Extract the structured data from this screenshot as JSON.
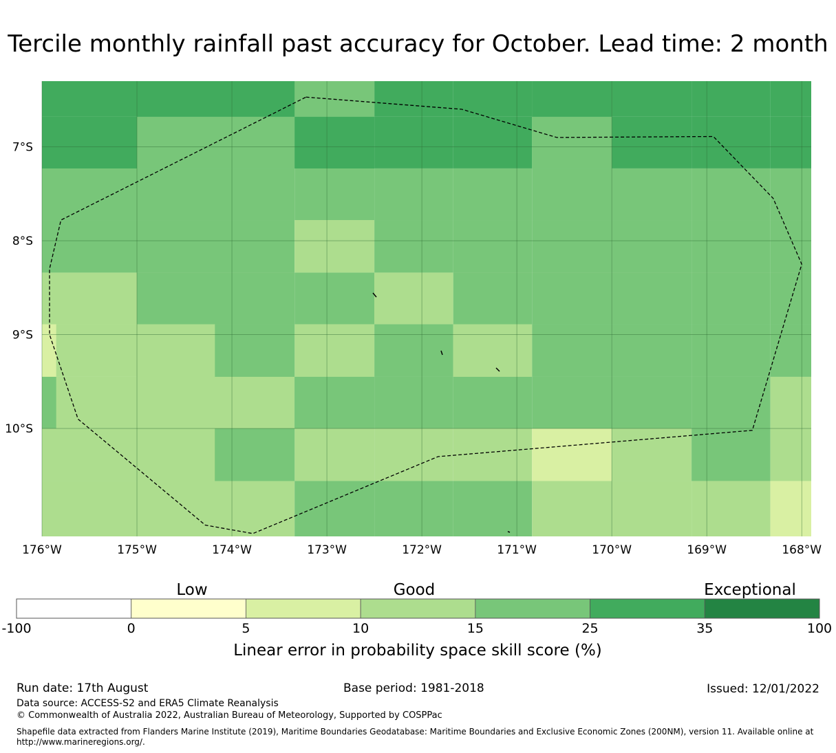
{
  "title": "Tercile monthly rainfall past accuracy for October. Lead time: 2 month",
  "map": {
    "lon_range": [
      -176,
      -167.9
    ],
    "lat_range": [
      -11.15,
      -6.3
    ],
    "lon_ticks": [
      {
        "value": -176,
        "label": "176°W"
      },
      {
        "value": -175,
        "label": "175°W"
      },
      {
        "value": -174,
        "label": "174°W"
      },
      {
        "value": -173,
        "label": "173°W"
      },
      {
        "value": -172,
        "label": "172°W"
      },
      {
        "value": -171,
        "label": "171°W"
      },
      {
        "value": -170,
        "label": "170°W"
      },
      {
        "value": -169,
        "label": "169°W"
      },
      {
        "value": -168,
        "label": "168°W"
      }
    ],
    "lat_ticks": [
      {
        "value": -7,
        "label": "7°S"
      },
      {
        "value": -8,
        "label": "8°S"
      },
      {
        "value": -9,
        "label": "9°S"
      },
      {
        "value": -10,
        "label": "10°S"
      }
    ],
    "grid": true,
    "cell_lon_edges": [
      -176,
      -175,
      -173.34,
      -172.5,
      -171.67,
      -170.84,
      -170,
      -169.16,
      -168.33,
      -167.9
    ],
    "cell_lat_edges": [
      -6.3,
      -6.68,
      -7.23,
      -7.78,
      -8.34,
      -8.89,
      -9.45,
      -10.0,
      -10.56,
      -11.15
    ],
    "skill_category_grid": [
      [
        5,
        5,
        4,
        5,
        5,
        5,
        5,
        5,
        5
      ],
      [
        5,
        4,
        5,
        5,
        5,
        4,
        5,
        5,
        5
      ],
      [
        4,
        4,
        4,
        4,
        4,
        4,
        4,
        4,
        4
      ],
      [
        4,
        4,
        3,
        4,
        4,
        4,
        4,
        4,
        4
      ],
      [
        3,
        4,
        4,
        3,
        4,
        4,
        4,
        4,
        4
      ],
      [
        3,
        3,
        3,
        4,
        3,
        4,
        4,
        4,
        4
      ],
      [
        3,
        3,
        4,
        4,
        4,
        4,
        4,
        4,
        3
      ],
      [
        3,
        4,
        3,
        3,
        3,
        2,
        3,
        4,
        3
      ],
      [
        3,
        3,
        4,
        4,
        4,
        3,
        3,
        3,
        2
      ]
    ],
    "skill_overrides": [
      {
        "lon": [
          -176,
          -175
        ],
        "lat": [
          -8.89,
          -9.45
        ],
        "cat_west": 2,
        "split_lon": -175.85
      },
      {
        "lon": [
          -176,
          -175
        ],
        "lat": [
          -9.45,
          -10.0
        ],
        "cat_west": 4,
        "split_lon": -175.85
      },
      {
        "lon": [
          -174.18,
          -173.34
        ],
        "lat": [
          -8.89,
          -9.45
        ],
        "cat": 4
      },
      {
        "lon": [
          -174.18,
          -173.34
        ],
        "lat": [
          -10.0,
          -10.56
        ],
        "cat": 4
      },
      {
        "lon": [
          -175,
          -174.18
        ],
        "lat": [
          -8.89,
          -9.45
        ],
        "cat": 3
      },
      {
        "lon": [
          -175,
          -174.18
        ],
        "lat": [
          -10.0,
          -10.56
        ],
        "cat": 3
      },
      {
        "lon": [
          -173.34,
          -172.5
        ],
        "lat": [
          -9.45,
          -10.0
        ],
        "cat": 4
      },
      {
        "lon": [
          -172.5,
          -171.67
        ],
        "lat": [
          -8.34,
          -8.89
        ],
        "cat": 3
      },
      {
        "lon": [
          -171.67,
          -170.84
        ],
        "lat": [
          -8.89,
          -9.45
        ],
        "cat": 3
      },
      {
        "lon": [
          -170.84,
          -170.0
        ],
        "lat": [
          -6.3,
          -6.68
        ],
        "cat": 5
      },
      {
        "lon": [
          -170.84,
          -170.0
        ],
        "lat": [
          -6.68,
          -7.23
        ],
        "cat": 4
      },
      {
        "lon": [
          -173.34,
          -172.5
        ],
        "lat": [
          -6.3,
          -6.68
        ],
        "cat": 4
      },
      {
        "lon": [
          -173.34,
          -172.5
        ],
        "lat": [
          -6.68,
          -7.23
        ],
        "cat": 5
      },
      {
        "lon": [
          -176,
          -175
        ],
        "lat": [
          -6.68,
          -7.23
        ],
        "cat": 5
      },
      {
        "lon": [
          -175,
          -173.34
        ],
        "lat": [
          -6.3,
          -6.68
        ],
        "cat": 5
      },
      {
        "lon": [
          -175,
          -173.34
        ],
        "lat": [
          -6.68,
          -7.23
        ],
        "cat": 4
      }
    ],
    "eez_boundary": [
      [
        -173.22,
        -6.47
      ],
      [
        -171.58,
        -6.6
      ],
      [
        -170.58,
        -6.9
      ],
      [
        -168.93,
        -6.89
      ],
      [
        -168.3,
        -7.55
      ],
      [
        -168.0,
        -8.25
      ],
      [
        -168.52,
        -10.02
      ],
      [
        -171.83,
        -10.3
      ],
      [
        -173.78,
        -11.12
      ],
      [
        -174.28,
        -11.03
      ],
      [
        -175.62,
        -9.9
      ],
      [
        -175.92,
        -9.0
      ],
      [
        -175.92,
        -8.3
      ],
      [
        -175.8,
        -7.78
      ],
      [
        -173.22,
        -6.47
      ]
    ]
  },
  "colorbar": {
    "categories": [
      "Low",
      "Good",
      "Exceptional"
    ],
    "ticks": [
      "-100",
      "0",
      "5",
      "10",
      "15",
      "25",
      "35",
      "100"
    ],
    "colors": [
      "#ffffff",
      "#ffffcc",
      "#d9f0a3",
      "#addd8e",
      "#78c679",
      "#41ab5d",
      "#238443"
    ],
    "label": "Linear error in probability space skill score (%)"
  },
  "footer": {
    "run_date": "Run date: 17th August",
    "base_period": "Base period: 1981-2018",
    "issued": "Issued: 12/01/2022",
    "data_source": "Data source: ACCESS-S2 and ERA5 Climate Reanalysis",
    "copyright": "© Commonwealth of Australia 2022, Australian Bureau of Meteorology, Supported by COSPPac",
    "shapefile_note": "Shapefile data extracted from Flanders Marine Institute (2019), Maritime Boundaries Geodatabase: Maritime Boundaries and Exclusive Economic Zones (200NM), version 11. Available online at http://www.marineregions.org/."
  }
}
